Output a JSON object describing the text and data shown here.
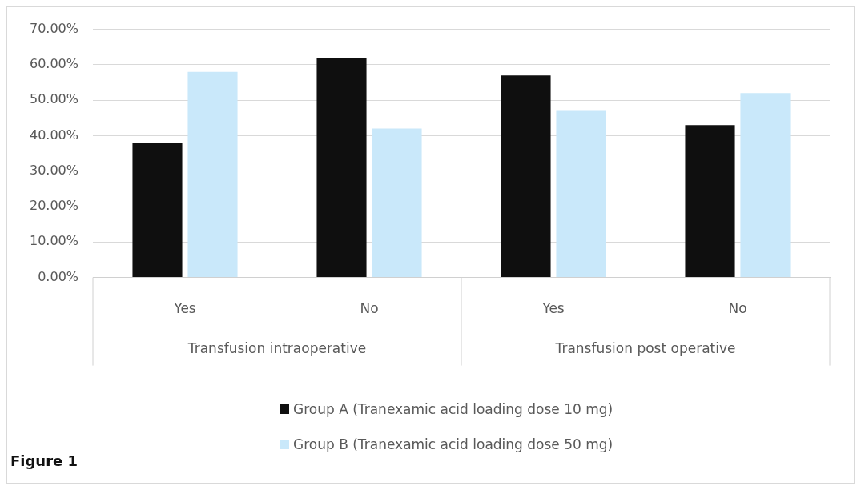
{
  "chart_data": {
    "type": "bar",
    "categories": [
      "Yes",
      "No",
      "Yes",
      "No"
    ],
    "series": [
      {
        "name": "Group A (Tranexamic acid loading dose 10 mg)",
        "color": "#0f0f0f",
        "values": [
          38,
          62,
          57,
          43
        ]
      },
      {
        "name": "Group B (Tranexamic acid loading dose 50 mg)",
        "color": "#c9e8fa",
        "values": [
          58,
          42,
          47,
          52
        ]
      }
    ],
    "ylim": [
      0,
      70
    ],
    "yticks": [
      {
        "value": 0,
        "label": "0.00%"
      },
      {
        "value": 10,
        "label": "10.00%"
      },
      {
        "value": 20,
        "label": "20.00%"
      },
      {
        "value": 30,
        "label": "30.00%"
      },
      {
        "value": 40,
        "label": "40.00%"
      },
      {
        "value": 50,
        "label": "50.00%"
      },
      {
        "value": 60,
        "label": "60.00%"
      },
      {
        "value": 70,
        "label": "70.00%"
      }
    ],
    "grid": "y",
    "legend": "bottom",
    "annotations": [
      "Transfusion intraoperative",
      "Transfusion post operative",
      "Figure 1"
    ]
  }
}
